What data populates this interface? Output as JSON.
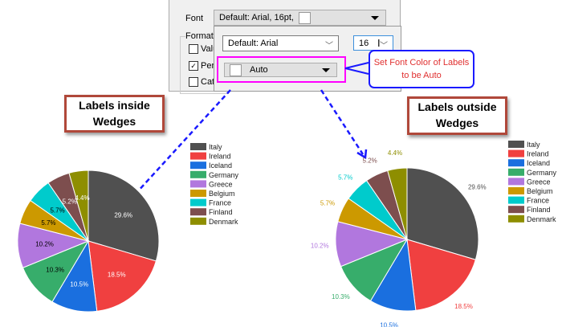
{
  "dialog": {
    "font_label": "Font",
    "font_combo_value": "Default: Arial, 16pt,",
    "format_label": "Format",
    "checkboxes": [
      {
        "label": "Valu",
        "checked": false
      },
      {
        "label": "Perc",
        "checked": true
      },
      {
        "label": "Cat",
        "checked": false
      }
    ],
    "font_name_value": "Default: Arial",
    "font_size_value": "16",
    "font_color_value": "Auto"
  },
  "annotations": {
    "callout_text": "Set Font Color of Labels to be Auto",
    "callout_color": "#e03030",
    "inside_box": "Labels inside Wedges",
    "outside_box": "Labels outside Wedges",
    "arrow_color": "#1a1aff",
    "highlight_color": "#ff00ff"
  },
  "chart_data": [
    {
      "type": "pie",
      "label_position": "inside",
      "legend_placement": "top-right",
      "categories": [
        "Italy",
        "Ireland",
        "Iceland",
        "Germany",
        "Greece",
        "Belgium",
        "France",
        "Finland",
        "Denmark"
      ],
      "values": [
        29.6,
        18.5,
        10.5,
        10.3,
        10.2,
        5.7,
        5.7,
        5.2,
        4.4
      ],
      "labels": [
        "29.6%",
        "18.5%",
        "10.5%",
        "10.3%",
        "10.2%",
        "5.7%",
        "5.7%",
        "5.2%",
        "4.4%"
      ],
      "colors": [
        "#505050",
        "#f04040",
        "#1a6fdf",
        "#37ad6b",
        "#b177de",
        "#cc9900",
        "#00cbcc",
        "#7d4e4e",
        "#8e8e00"
      ]
    },
    {
      "type": "pie",
      "label_position": "outside",
      "legend_placement": "top-right",
      "categories": [
        "Italy",
        "Ireland",
        "Iceland",
        "Germany",
        "Greece",
        "Belgium",
        "France",
        "Finland",
        "Denmark"
      ],
      "values": [
        29.6,
        18.5,
        10.5,
        10.3,
        10.2,
        5.7,
        5.7,
        5.2,
        4.4
      ],
      "labels": [
        "29.6%",
        "18.5%",
        "10.5%",
        "10.3%",
        "10.2%",
        "5.7%",
        "5.7%",
        "5.2%",
        "4.4%"
      ],
      "colors": [
        "#505050",
        "#f04040",
        "#1a6fdf",
        "#37ad6b",
        "#b177de",
        "#cc9900",
        "#00cbcc",
        "#7d4e4e",
        "#8e8e00"
      ]
    }
  ]
}
